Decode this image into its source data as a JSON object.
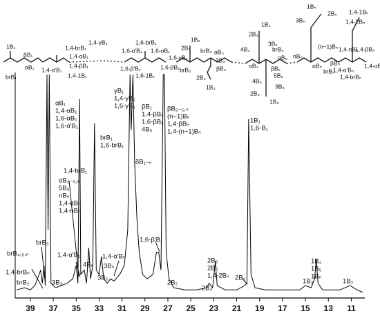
{
  "chart_data": {
    "type": "line",
    "color": "#000000",
    "x": [
      40.2,
      39.5,
      39.0,
      38.6,
      38.3,
      38.1,
      37.95,
      37.8,
      37.7,
      37.55,
      37.45,
      37.35,
      37.2,
      36.8,
      36.3,
      35.8,
      35.3,
      35.0,
      34.85,
      34.7,
      34.6,
      34.3,
      34.1,
      33.9,
      33.75,
      33.55,
      33.4,
      33.25,
      33.0,
      32.8,
      32.6,
      32.3,
      32.0,
      31.7,
      31.2,
      30.8,
      30.5,
      30.3,
      30.2,
      30.05,
      29.9,
      29.7,
      29.5,
      29.2,
      28.8,
      28.3,
      28.0,
      27.8,
      27.6,
      27.4,
      27.3,
      27.15,
      26.9,
      26.5,
      25.5,
      24.5,
      23.6,
      23.4,
      23.1,
      22.85,
      22.7,
      22.0,
      21.0,
      20.3,
      20.1,
      19.95,
      19.75,
      19.4,
      18.5,
      17.0,
      15.5,
      15.0,
      14.5,
      14.2,
      14.05,
      13.9,
      13.5,
      12.0,
      11.1,
      10.5,
      10.0
    ],
    "values": [
      3,
      4,
      3,
      5,
      9,
      12,
      6,
      14,
      5,
      100,
      30,
      100,
      6,
      4,
      5,
      6,
      8,
      14,
      6,
      89,
      10,
      12,
      6,
      22,
      8,
      14,
      78,
      12,
      10,
      18,
      8,
      6,
      8,
      7,
      10,
      14,
      30,
      100,
      75,
      100,
      60,
      35,
      20,
      10,
      8,
      10,
      20,
      20,
      12,
      100,
      100,
      20,
      8,
      4,
      3,
      3,
      4,
      6,
      4,
      16,
      5,
      3,
      3,
      5,
      6,
      80,
      10,
      4,
      3,
      3,
      3,
      5,
      4,
      8,
      17,
      6,
      3,
      3,
      5,
      3,
      2
    ],
    "xlim": [
      40.2,
      10
    ],
    "ylim": [
      0,
      100
    ],
    "xticks": [
      39,
      37,
      35,
      33,
      31,
      29,
      27,
      25,
      23,
      21,
      19,
      17,
      15,
      13,
      11
    ],
    "annotations": [
      {
        "lines": [
          "αB₁",
          "1,4-αB₁",
          "1,6-αB₁",
          "1,6-α'B₁"
        ]
      },
      {
        "lines": [
          "brB₁",
          "1,6-brB₁"
        ]
      },
      {
        "lines": [
          "γB₁",
          "1,4-γB₁",
          "1,6-γB₁"
        ]
      },
      {
        "lines": [
          "βB₁",
          "1,4-βB₁",
          "1,6-βB₁",
          "4B₅"
        ]
      },
      {
        "lines": [
          "βB₂₋₅,ₙ",
          "(n−1)Bₙ",
          "1,4-βBₙ",
          "1,4-(n−1)Bₙ"
        ]
      },
      {
        "lines": [
          "δB₁₋ₙ"
        ]
      },
      {
        "lines": [
          "1B₁",
          "1,6-B₁"
        ]
      },
      {
        "lines": [
          "1,4-brB₁"
        ]
      },
      {
        "lines": [
          "αB₃₋₅,ₙ",
          "5B₅",
          "nBₙ",
          "1,4-αBₙ",
          "1,4-nBₙ"
        ]
      },
      {
        "lines": [
          "1,4-α'B₁"
        ]
      },
      {
        "lines": [
          "brB₃"
        ]
      },
      {
        "lines": [
          "brB₄,₅,ₙ"
        ]
      },
      {
        "lines": [
          "1,4-brBₙ"
        ]
      },
      {
        "lines": [
          "brB₂"
        ]
      },
      {
        "lines": [
          "3B₃"
        ]
      },
      {
        "lines": [
          "4Bₙ"
        ]
      },
      {
        "lines": [
          "3B₅"
        ]
      },
      {
        "lines": [
          "1,4-α'Bₙ"
        ]
      },
      {
        "lines": [
          "3Bₙ"
        ]
      },
      {
        "lines": [
          "1,6-β'B₁"
        ]
      },
      {
        "lines": [
          "2B₂"
        ]
      },
      {
        "lines": [
          "2B₅",
          "2Bₙ",
          "1,4-2Bₙ"
        ]
      },
      {
        "lines": [
          "2B₄"
        ]
      },
      {
        "lines": [
          "2B₃"
        ]
      },
      {
        "lines": [
          "1B₃"
        ]
      },
      {
        "lines": [
          "1B₄",
          "1B₅",
          "1Bₙ"
        ]
      },
      {
        "lines": [
          "1B₂"
        ]
      }
    ],
    "structure_labels": [
      "1B₁",
      "βB₁",
      "αB₁",
      "brB₁",
      "1,4-α'B₁",
      "1,4-brB₁",
      "1,4-αB₁",
      "1,4-βB₁",
      "1,4-1B₁",
      "1,4-γB₁",
      "1,6-brB₁",
      "1,6-α'B₁",
      "1,6-αB₁",
      "1,6-γB₁",
      "1,6-β'B₁",
      "1,6-βB₁",
      "1,6-1B₁",
      "1B₂",
      "2B₂",
      "brB₂",
      "brB₃",
      "αB₃",
      "βB₃",
      "3B₃",
      "2B₃",
      "1B₃",
      "1B₄",
      "2B₄",
      "3B₄",
      "4B₄",
      "αB₄",
      "brB₅",
      "αB₅",
      "βB₅",
      "5B₅",
      "4B₅",
      "3B₅",
      "2B₅",
      "1B₅",
      "1Bₙ",
      "2Bₙ",
      "3Bₙ",
      "(n−1)Bₙ",
      "nBₙ",
      "αBₙ",
      "βBₙ",
      "brBₙ",
      "1,4-1Bₙ",
      "1,4-2Bₙ",
      "1,4-nBₙ",
      "1,4-βBₙ",
      "1,4-α'Bₙ",
      "1,4-αBₙ",
      "1,4-brBₙ"
    ]
  }
}
